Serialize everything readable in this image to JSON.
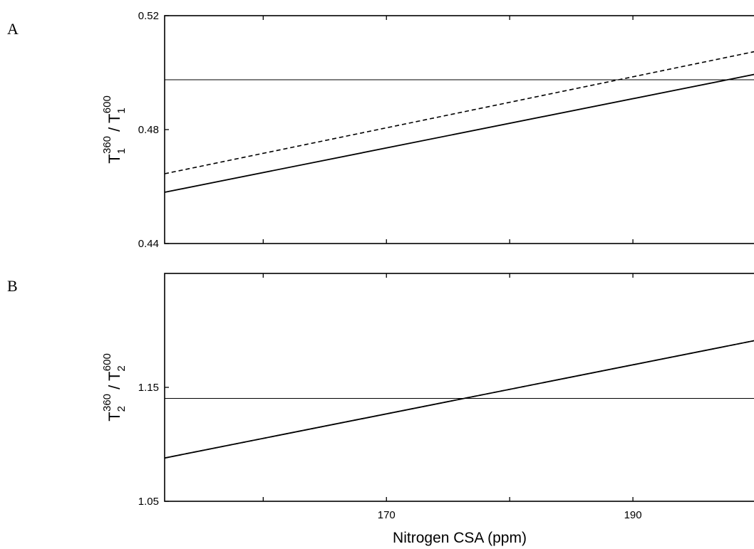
{
  "chart_data": [
    {
      "type": "line",
      "panel": "A",
      "title": "",
      "xlabel": "",
      "ylabel": {
        "base": "T",
        "sub1": "1",
        "sup1": "360",
        "sep": " / ",
        "base2": "T",
        "sub2": "1",
        "sup2": "600"
      },
      "xlim": [
        152,
        200
      ],
      "ylim": [
        0.44,
        0.52
      ],
      "yticks": [
        "0.44",
        "0.48",
        "0.52"
      ],
      "xticks": [],
      "series": [
        {
          "style": "solid",
          "x": [
            152,
            200
          ],
          "y": [
            0.458,
            0.4995
          ]
        },
        {
          "style": "dashed",
          "x": [
            152,
            200
          ],
          "y": [
            0.4645,
            0.5075
          ]
        },
        {
          "style": "thin",
          "x": [
            152,
            200
          ],
          "y": [
            0.4975,
            0.4975
          ]
        }
      ]
    },
    {
      "type": "line",
      "panel": "B",
      "title": "",
      "xlabel": "Nitrogen CSA (ppm)",
      "ylabel": {
        "base": "T",
        "sub1": "2",
        "sup1": "360",
        "sep": " / ",
        "base2": "T",
        "sub2": "2",
        "sup2": "600"
      },
      "xlim": [
        152,
        200
      ],
      "ylim": [
        1.05,
        1.25
      ],
      "yticks": [
        "1.05",
        "1.15"
      ],
      "xticks": [
        "170",
        "190"
      ],
      "series": [
        {
          "style": "solid",
          "x": [
            152,
            200
          ],
          "y": [
            1.088,
            1.1913
          ]
        },
        {
          "style": "dashed",
          "x": [
            152,
            200
          ],
          "y": [
            1.088,
            1.1913
          ]
        },
        {
          "style": "thin",
          "x": [
            152,
            200
          ],
          "y": [
            1.1403,
            1.1403
          ]
        }
      ]
    }
  ]
}
